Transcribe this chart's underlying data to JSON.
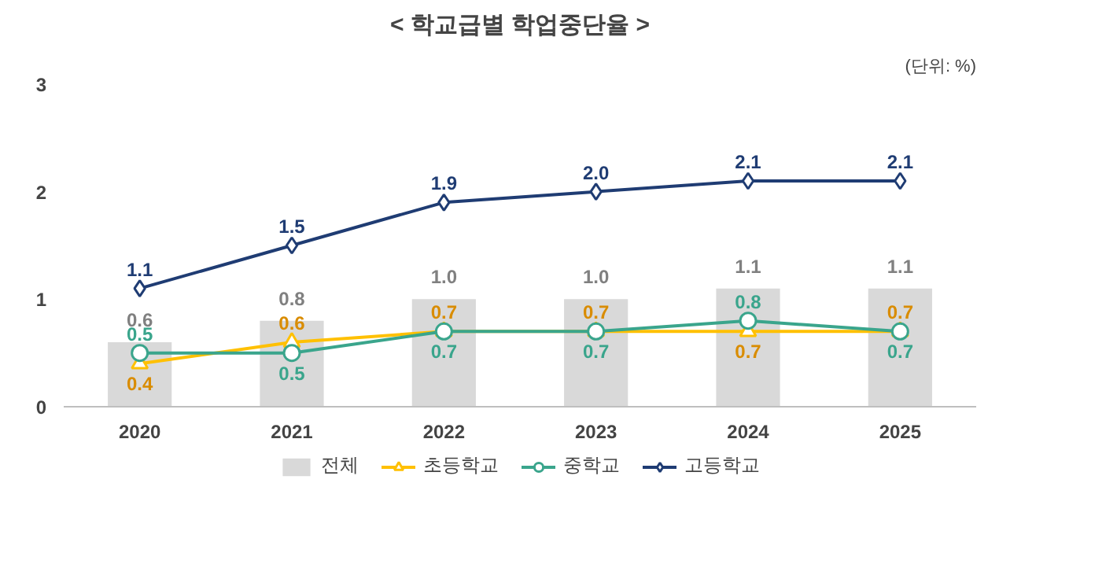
{
  "chart_data": {
    "type": "bar",
    "title": "< 학교급별 학업중단율 >",
    "annotations": [
      "(단위: %)"
    ],
    "categories": [
      "2020",
      "2021",
      "2022",
      "2023",
      "2024",
      "2025"
    ],
    "series": [
      {
        "name": "전체",
        "color": "#d9d9d9",
        "values": [
          0.6,
          0.8,
          1.0,
          1.0,
          1.1,
          1.1
        ],
        "value_labels": [
          "0.6",
          "0.8",
          "1.0",
          "1.0",
          "1.1",
          "1.1"
        ]
      },
      {
        "name": "초등학교",
        "type": "line",
        "marker": "triangle",
        "color": "#ffc000",
        "values": [
          0.4,
          0.6,
          0.7,
          0.7,
          0.7,
          0.7
        ],
        "value_labels": [
          "0.4",
          "0.6",
          "0.7",
          "0.7",
          "0.7",
          "0.7"
        ]
      },
      {
        "name": "중학교",
        "type": "line",
        "marker": "circle",
        "color": "#3aa58c",
        "values": [
          0.5,
          0.5,
          0.7,
          0.7,
          0.8,
          0.7
        ],
        "value_labels": [
          "0.5",
          "0.5",
          "0.7",
          "0.7",
          "0.8",
          "0.7"
        ]
      },
      {
        "name": "고등학교",
        "type": "line",
        "marker": "diamond",
        "color": "#1f3c73",
        "values": [
          1.1,
          1.5,
          1.9,
          2.0,
          2.1,
          2.1
        ],
        "value_labels": [
          "1.1",
          "1.5",
          "1.9",
          "2.0",
          "2.1",
          "2.1"
        ]
      }
    ],
    "ylim": [
      0,
      3
    ],
    "yticks": [
      0,
      1,
      2,
      3
    ],
    "grid": false,
    "legend": "bottom"
  }
}
